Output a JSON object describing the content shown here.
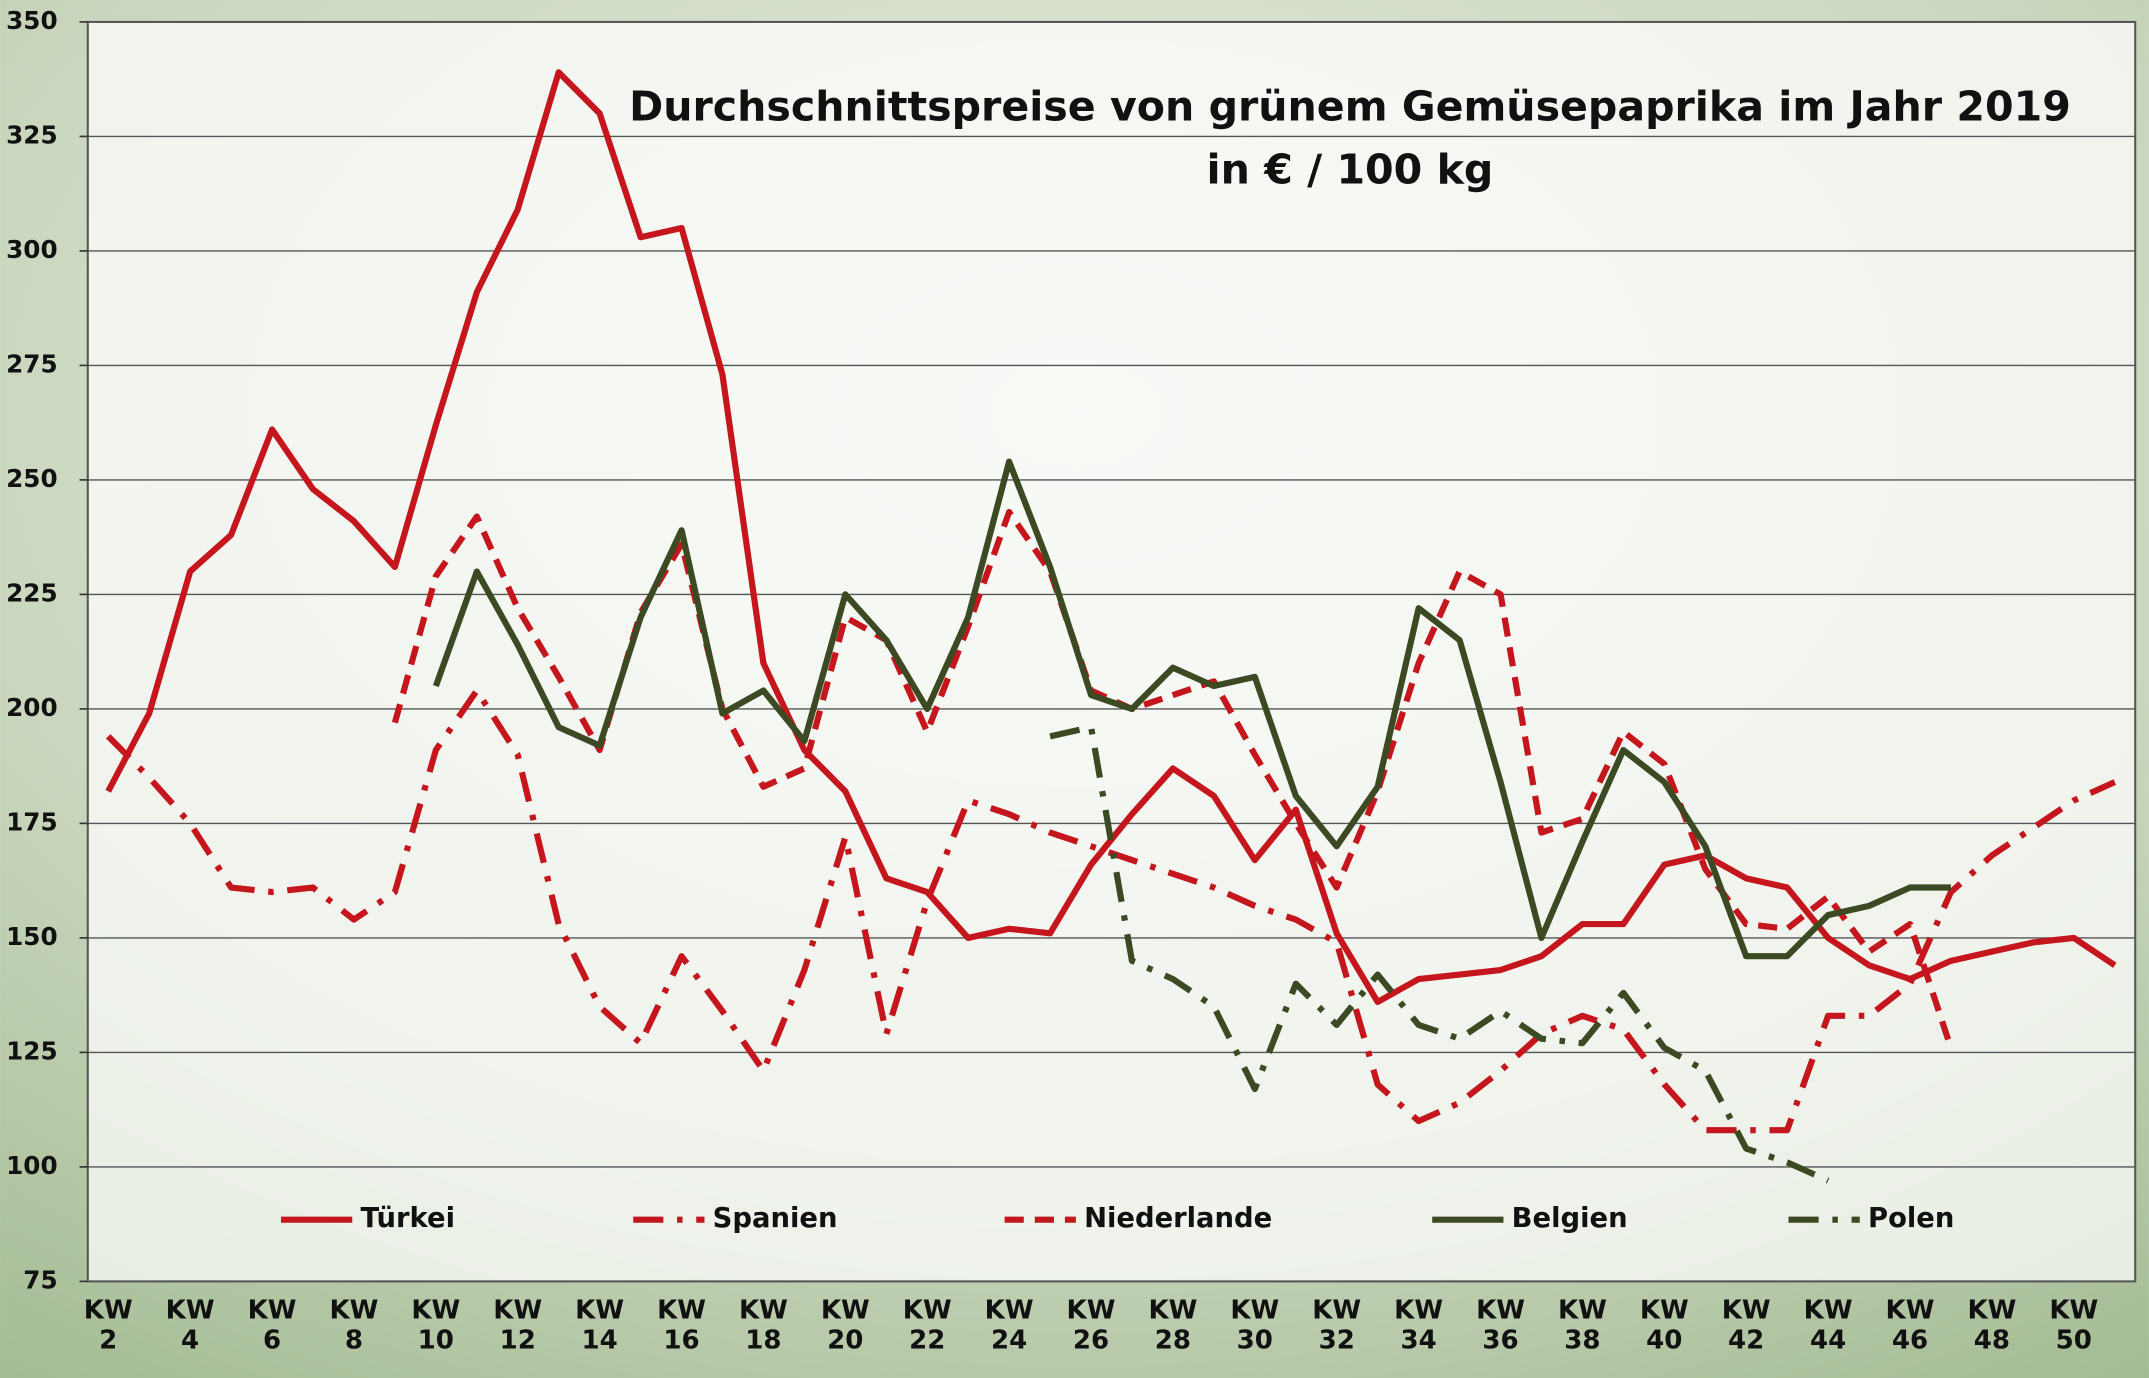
{
  "chart_data": {
    "type": "line",
    "title": "Durchschnittspreise von grünem Gemüsepaprika im Jahr 2019",
    "subtitle": "in € / 100 kg",
    "categories": [
      "KW 2",
      null,
      "KW 4",
      null,
      "KW 6",
      null,
      "KW 8",
      null,
      "KW 10",
      null,
      "KW 12",
      null,
      "KW 14",
      null,
      "KW 16",
      null,
      "KW 18",
      null,
      "KW 20",
      null,
      "KW 22",
      null,
      "KW 24",
      null,
      "KW 26",
      null,
      "KW 28",
      null,
      "KW 30",
      null,
      "KW 32",
      null,
      "KW 34",
      null,
      "KW 36",
      null,
      "KW 38",
      null,
      "KW 40",
      null,
      "KW 42",
      null,
      "KW 44",
      null,
      "KW 46",
      null,
      "KW 48",
      null,
      "KW 50",
      null
    ],
    "series": [
      {
        "name": "Türkei",
        "color": "#c4161c",
        "style": "solid",
        "values": [
          182,
          199,
          230,
          238,
          261,
          248,
          241,
          231,
          262,
          291,
          309,
          339,
          330,
          303,
          305,
          273,
          210,
          191,
          182,
          163,
          160,
          150,
          152,
          151,
          166,
          177,
          187,
          181,
          167,
          178,
          151,
          136,
          141,
          142,
          143,
          146,
          153,
          153,
          166,
          168,
          163,
          161,
          150,
          144,
          141,
          145,
          147,
          149,
          150,
          144
        ]
      },
      {
        "name": "Spanien",
        "color": "#c4161c",
        "style": "dashdot",
        "values": [
          194,
          185,
          175,
          161,
          160,
          161,
          154,
          160,
          191,
          204,
          190,
          153,
          135,
          127,
          146,
          134,
          121,
          143,
          172,
          129,
          158,
          180,
          177,
          173,
          170,
          167,
          164,
          161,
          157,
          154,
          149,
          118,
          110,
          114,
          121,
          129,
          133,
          130,
          118,
          108,
          108,
          108,
          133,
          133,
          140,
          160,
          168,
          174,
          180,
          184
        ]
      },
      {
        "name": "Niederlande",
        "color": "#c4161c",
        "style": "dash",
        "values": [
          null,
          null,
          null,
          null,
          null,
          null,
          null,
          197,
          229,
          242,
          222,
          207,
          191,
          221,
          236,
          200,
          183,
          187,
          220,
          215,
          195,
          218,
          243,
          230,
          204,
          200,
          203,
          206,
          190,
          175,
          161,
          182,
          210,
          230,
          225,
          173,
          176,
          195,
          188,
          165,
          153,
          152,
          159,
          147,
          153,
          126,
          null,
          null,
          null,
          null
        ]
      },
      {
        "name": "Belgien",
        "color": "#3b4a23",
        "style": "solid",
        "values": [
          null,
          null,
          null,
          null,
          null,
          null,
          null,
          null,
          205,
          230,
          214,
          196,
          192,
          220,
          239,
          199,
          204,
          193,
          225,
          215,
          200,
          220,
          254,
          231,
          203,
          200,
          209,
          205,
          207,
          181,
          170,
          183,
          222,
          215,
          184,
          150,
          171,
          191,
          184,
          170,
          146,
          146,
          155,
          157,
          161,
          161,
          null,
          null,
          null,
          null
        ]
      },
      {
        "name": "Polen",
        "color": "#3b4a23",
        "style": "dashdot",
        "values": [
          null,
          null,
          null,
          null,
          null,
          null,
          null,
          null,
          null,
          null,
          null,
          null,
          null,
          null,
          null,
          null,
          null,
          null,
          null,
          null,
          null,
          null,
          null,
          194,
          196,
          145,
          141,
          135,
          117,
          140,
          131,
          142,
          131,
          128,
          134,
          128,
          127,
          138,
          126,
          121,
          104,
          101,
          97,
          null,
          null,
          null,
          null,
          null,
          null,
          null
        ]
      }
    ],
    "ylim": [
      75,
      350
    ],
    "yticks": [
      75,
      100,
      125,
      150,
      175,
      200,
      225,
      250,
      275,
      300,
      325,
      350
    ],
    "grid": true,
    "legend": "bottom"
  }
}
